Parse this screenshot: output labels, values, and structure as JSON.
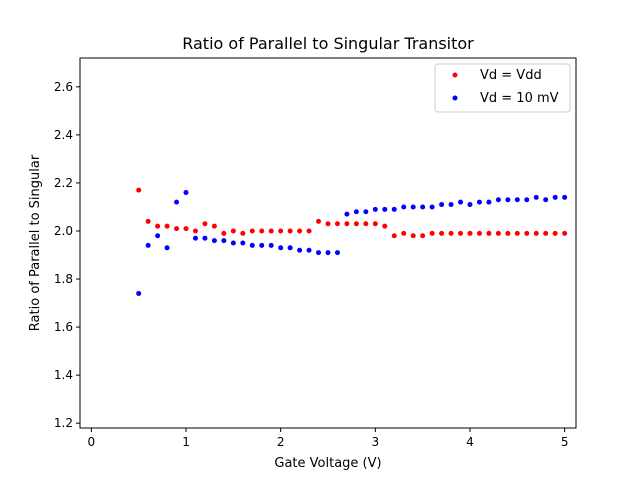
{
  "chart_data": {
    "type": "scatter",
    "title": "Ratio of Parallel to Singular Transitor",
    "xlabel": "Gate Voltage (V)",
    "ylabel": "Ratio of Parallel to Singular",
    "xlim": [
      -0.12,
      5.12
    ],
    "ylim": [
      1.18,
      2.72
    ],
    "xticks": [
      0,
      1,
      2,
      3,
      4,
      5
    ],
    "xtick_labels": [
      "0",
      "1",
      "2",
      "3",
      "4",
      "5"
    ],
    "yticks": [
      1.2,
      1.4,
      1.6,
      1.8,
      2.0,
      2.2,
      2.4,
      2.6
    ],
    "ytick_labels": [
      "1.2",
      "1.4",
      "1.6",
      "1.8",
      "2.0",
      "2.2",
      "2.4",
      "2.6"
    ],
    "grid": false,
    "legend_position": "top-right",
    "series": [
      {
        "name": "Vd = Vdd",
        "color": "#ff0000",
        "marker": "circle",
        "x": [
          0.5,
          0.6,
          0.7,
          0.8,
          0.9,
          1.0,
          1.1,
          1.2,
          1.3,
          1.4,
          1.5,
          1.6,
          1.7,
          1.8,
          1.9,
          2.0,
          2.1,
          2.2,
          2.3,
          2.4,
          2.5,
          2.6,
          2.7,
          2.8,
          2.9,
          3.0,
          3.1,
          3.2,
          3.3,
          3.4,
          3.5,
          3.6,
          3.7,
          3.8,
          3.9,
          4.0,
          4.1,
          4.2,
          4.3,
          4.4,
          4.5,
          4.6,
          4.7,
          4.8,
          4.9,
          5.0
        ],
        "y": [
          2.17,
          2.04,
          2.02,
          2.02,
          2.01,
          2.01,
          2.0,
          2.03,
          2.02,
          1.99,
          2.0,
          1.99,
          2.0,
          2.0,
          2.0,
          2.0,
          2.0,
          2.0,
          2.0,
          2.04,
          2.03,
          2.03,
          2.03,
          2.03,
          2.03,
          2.03,
          2.02,
          1.98,
          1.99,
          1.98,
          1.98,
          1.99,
          1.99,
          1.99,
          1.99,
          1.99,
          1.99,
          1.99,
          1.99,
          1.99,
          1.99,
          1.99,
          1.99,
          1.99,
          1.99,
          1.99
        ]
      },
      {
        "name": "Vd = 10 mV",
        "color": "#0000ff",
        "marker": "circle",
        "x": [
          0.5,
          0.6,
          0.7,
          0.8,
          0.9,
          1.0,
          1.1,
          1.2,
          1.3,
          1.4,
          1.5,
          1.6,
          1.7,
          1.8,
          1.9,
          2.0,
          2.1,
          2.2,
          2.3,
          2.4,
          2.5,
          2.6,
          2.7,
          2.8,
          2.9,
          3.0,
          3.1,
          3.2,
          3.3,
          3.4,
          3.5,
          3.6,
          3.7,
          3.8,
          3.9,
          4.0,
          4.1,
          4.2,
          4.3,
          4.4,
          4.5,
          4.6,
          4.7,
          4.8,
          4.9,
          5.0
        ],
        "y": [
          1.74,
          1.94,
          1.98,
          1.93,
          2.12,
          2.16,
          1.97,
          1.97,
          1.96,
          1.96,
          1.95,
          1.95,
          1.94,
          1.94,
          1.94,
          1.93,
          1.93,
          1.92,
          1.92,
          1.91,
          1.91,
          1.91,
          2.07,
          2.08,
          2.08,
          2.09,
          2.09,
          2.09,
          2.1,
          2.1,
          2.1,
          2.1,
          2.11,
          2.11,
          2.12,
          2.11,
          2.12,
          2.12,
          2.13,
          2.13,
          2.13,
          2.13,
          2.14,
          2.13,
          2.14,
          2.14
        ]
      }
    ]
  }
}
